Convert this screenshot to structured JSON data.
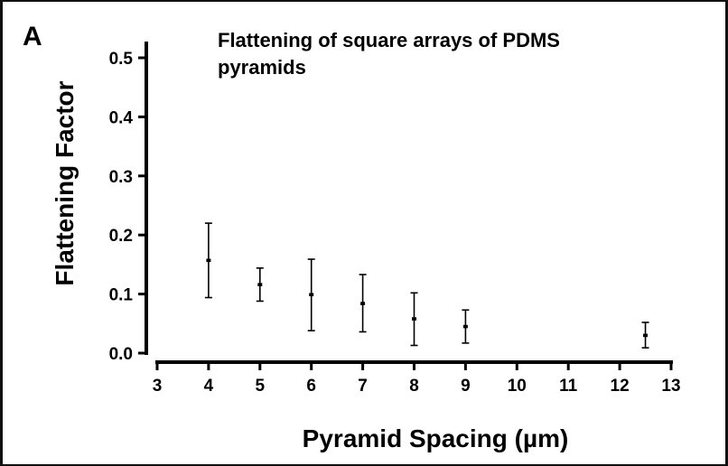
{
  "panel_label": "A",
  "chart_data": {
    "type": "scatter",
    "title_lines": [
      "Flattening of square arrays of PDMS",
      "pyramids"
    ],
    "xlabel": "Pyramid Spacing (µm)",
    "ylabel": "Flattening Factor",
    "xlim": [
      3,
      13
    ],
    "ylim": [
      0,
      0.5
    ],
    "x_ticks": [
      3,
      4,
      5,
      6,
      7,
      8,
      9,
      10,
      11,
      12,
      13
    ],
    "x_tick_labels": [
      "3",
      "4",
      "5",
      "6",
      "7",
      "8",
      "9",
      "10",
      "11",
      "12",
      "13"
    ],
    "y_ticks": [
      0.0,
      0.1,
      0.2,
      0.3,
      0.4,
      0.5
    ],
    "y_tick_labels": [
      "0.0",
      "0.1",
      "0.2",
      "0.3",
      "0.4",
      "0.5"
    ],
    "grid": false,
    "points": [
      {
        "x": 4,
        "y": 0.157,
        "err_low": 0.094,
        "err_high": 0.22
      },
      {
        "x": 5,
        "y": 0.116,
        "err_low": 0.088,
        "err_high": 0.144
      },
      {
        "x": 6,
        "y": 0.099,
        "err_low": 0.038,
        "err_high": 0.159
      },
      {
        "x": 7,
        "y": 0.084,
        "err_low": 0.036,
        "err_high": 0.133
      },
      {
        "x": 8,
        "y": 0.058,
        "err_low": 0.013,
        "err_high": 0.102
      },
      {
        "x": 9,
        "y": 0.045,
        "err_low": 0.017,
        "err_high": 0.073
      },
      {
        "x": 12.5,
        "y": 0.03,
        "err_low": 0.009,
        "err_high": 0.052
      }
    ]
  }
}
